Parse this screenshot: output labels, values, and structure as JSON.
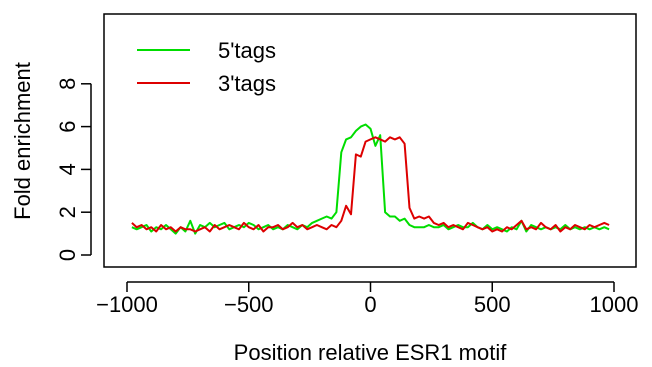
{
  "chart_data": {
    "type": "line",
    "title": "",
    "xlabel": "Position relative ESR1 motif",
    "ylabel": "Fold enrichment",
    "xlim": [
      -1000,
      1000
    ],
    "ylim": [
      0,
      10
    ],
    "x_ticks": [
      -1000,
      -500,
      0,
      500,
      1000
    ],
    "x_tick_labels": [
      "−1000",
      "−500",
      "0",
      "500",
      "1000"
    ],
    "y_ticks": [
      0,
      2,
      4,
      6,
      8
    ],
    "y_tick_labels": [
      "0",
      "2",
      "4",
      "6",
      "8"
    ],
    "grid": false,
    "legend_position": "top-left",
    "series": [
      {
        "name": "5'tags",
        "color": "#00dd00",
        "x": [
          -980,
          -960,
          -940,
          -920,
          -900,
          -880,
          -860,
          -840,
          -820,
          -800,
          -780,
          -760,
          -740,
          -720,
          -700,
          -680,
          -660,
          -640,
          -620,
          -600,
          -580,
          -560,
          -540,
          -520,
          -500,
          -480,
          -460,
          -440,
          -420,
          -400,
          -380,
          -360,
          -340,
          -320,
          -300,
          -280,
          -260,
          -240,
          -220,
          -200,
          -180,
          -160,
          -140,
          -120,
          -100,
          -80,
          -60,
          -40,
          -20,
          0,
          20,
          40,
          60,
          80,
          100,
          120,
          140,
          160,
          180,
          200,
          220,
          240,
          260,
          280,
          300,
          320,
          340,
          360,
          380,
          400,
          420,
          440,
          460,
          480,
          500,
          520,
          540,
          560,
          580,
          600,
          620,
          640,
          660,
          680,
          700,
          720,
          740,
          760,
          780,
          800,
          820,
          840,
          860,
          880,
          900,
          920,
          940,
          960,
          980
        ],
        "y": [
          1.3,
          1.2,
          1.3,
          1.4,
          1.1,
          1.3,
          1.2,
          1.4,
          1.2,
          1.0,
          1.3,
          1.1,
          1.6,
          1.0,
          1.4,
          1.3,
          1.5,
          1.3,
          1.4,
          1.5,
          1.2,
          1.3,
          1.4,
          1.3,
          1.5,
          1.4,
          1.2,
          1.3,
          1.4,
          1.2,
          1.3,
          1.2,
          1.4,
          1.3,
          1.2,
          1.4,
          1.3,
          1.5,
          1.6,
          1.7,
          1.8,
          1.7,
          2.0,
          4.8,
          5.4,
          5.5,
          5.8,
          6.0,
          6.1,
          5.9,
          5.1,
          5.6,
          2.0,
          1.8,
          1.8,
          1.6,
          1.7,
          1.4,
          1.3,
          1.3,
          1.3,
          1.4,
          1.3,
          1.3,
          1.4,
          1.2,
          1.3,
          1.4,
          1.3,
          1.3,
          1.5,
          1.3,
          1.2,
          1.4,
          1.2,
          1.3,
          1.2,
          1.1,
          1.3,
          1.2,
          1.6,
          1.1,
          1.4,
          1.3,
          1.2,
          1.3,
          1.2,
          1.3,
          1.2,
          1.4,
          1.2,
          1.3,
          1.2,
          1.3,
          1.2,
          1.3,
          1.2,
          1.3,
          1.2
        ]
      },
      {
        "name": "3'tags",
        "color": "#dd0000",
        "x": [
          -980,
          -960,
          -940,
          -920,
          -900,
          -880,
          -860,
          -840,
          -820,
          -800,
          -780,
          -760,
          -740,
          -720,
          -700,
          -680,
          -660,
          -640,
          -620,
          -600,
          -580,
          -560,
          -540,
          -520,
          -500,
          -480,
          -460,
          -440,
          -420,
          -400,
          -380,
          -360,
          -340,
          -320,
          -300,
          -280,
          -260,
          -240,
          -220,
          -200,
          -180,
          -160,
          -140,
          -120,
          -100,
          -80,
          -60,
          -40,
          -20,
          0,
          20,
          40,
          60,
          80,
          100,
          120,
          140,
          160,
          180,
          200,
          220,
          240,
          260,
          280,
          300,
          320,
          340,
          360,
          380,
          400,
          420,
          440,
          460,
          480,
          500,
          520,
          540,
          560,
          580,
          600,
          620,
          640,
          660,
          680,
          700,
          720,
          740,
          760,
          780,
          800,
          820,
          840,
          860,
          880,
          900,
          920,
          940,
          960,
          980
        ],
        "y": [
          1.5,
          1.3,
          1.4,
          1.2,
          1.3,
          1.1,
          1.4,
          1.2,
          1.3,
          1.1,
          1.3,
          1.2,
          1.2,
          1.1,
          1.2,
          1.3,
          1.1,
          1.4,
          1.2,
          1.3,
          1.4,
          1.3,
          1.2,
          1.5,
          1.3,
          1.2,
          1.4,
          1.1,
          1.3,
          1.3,
          1.4,
          1.2,
          1.3,
          1.5,
          1.3,
          1.4,
          1.2,
          1.3,
          1.4,
          1.3,
          1.2,
          1.4,
          1.3,
          1.6,
          2.3,
          1.9,
          4.7,
          4.6,
          5.3,
          5.4,
          5.5,
          5.4,
          5.3,
          5.5,
          5.4,
          5.5,
          5.2,
          2.2,
          1.7,
          1.8,
          1.7,
          1.8,
          1.5,
          1.4,
          1.5,
          1.3,
          1.4,
          1.3,
          1.2,
          1.5,
          1.4,
          1.3,
          1.2,
          1.3,
          1.1,
          1.2,
          1.1,
          1.3,
          1.2,
          1.4,
          1.6,
          1.2,
          1.3,
          1.2,
          1.5,
          1.3,
          1.2,
          1.4,
          1.1,
          1.3,
          1.2,
          1.4,
          1.3,
          1.2,
          1.4,
          1.3,
          1.4,
          1.5,
          1.4
        ]
      }
    ]
  }
}
